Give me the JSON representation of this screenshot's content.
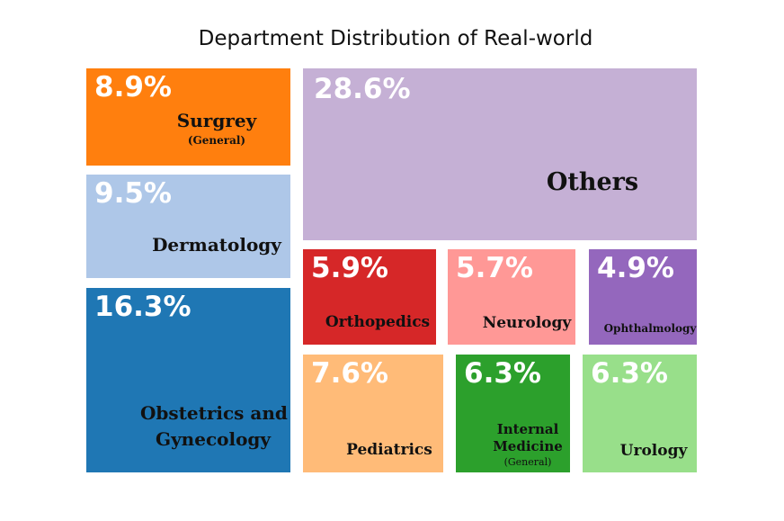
{
  "chart_data": {
    "type": "treemap",
    "title": "Department Distribution of Real-world",
    "items": [
      {
        "label": "Surgrey",
        "sublabel": "(General)",
        "value": "8.9%",
        "color": "#ff7f0e"
      },
      {
        "label": "Dermatology",
        "value": "9.5%",
        "color": "#aec7e8"
      },
      {
        "label": "Obstetrics and",
        "label2": "Gynecology",
        "value": "16.3%",
        "color": "#1f77b4"
      },
      {
        "label": "Others",
        "value": "28.6%",
        "color": "#c5b0d5"
      },
      {
        "label": "Orthopedics",
        "value": "5.9%",
        "color": "#d62728"
      },
      {
        "label": "Neurology",
        "value": "5.7%",
        "color": "#ff9896"
      },
      {
        "label": "Ophthalmology",
        "value": "4.9%",
        "color": "#9467bd"
      },
      {
        "label": "Pediatrics",
        "value": "7.6%",
        "color": "#ffbb78"
      },
      {
        "label": "Internal",
        "label2": "Medicine",
        "sublabel": "(General)",
        "value": "6.3%",
        "color": "#2ca02c"
      },
      {
        "label": "Urology",
        "value": "6.3%",
        "color": "#98df8a"
      }
    ]
  }
}
